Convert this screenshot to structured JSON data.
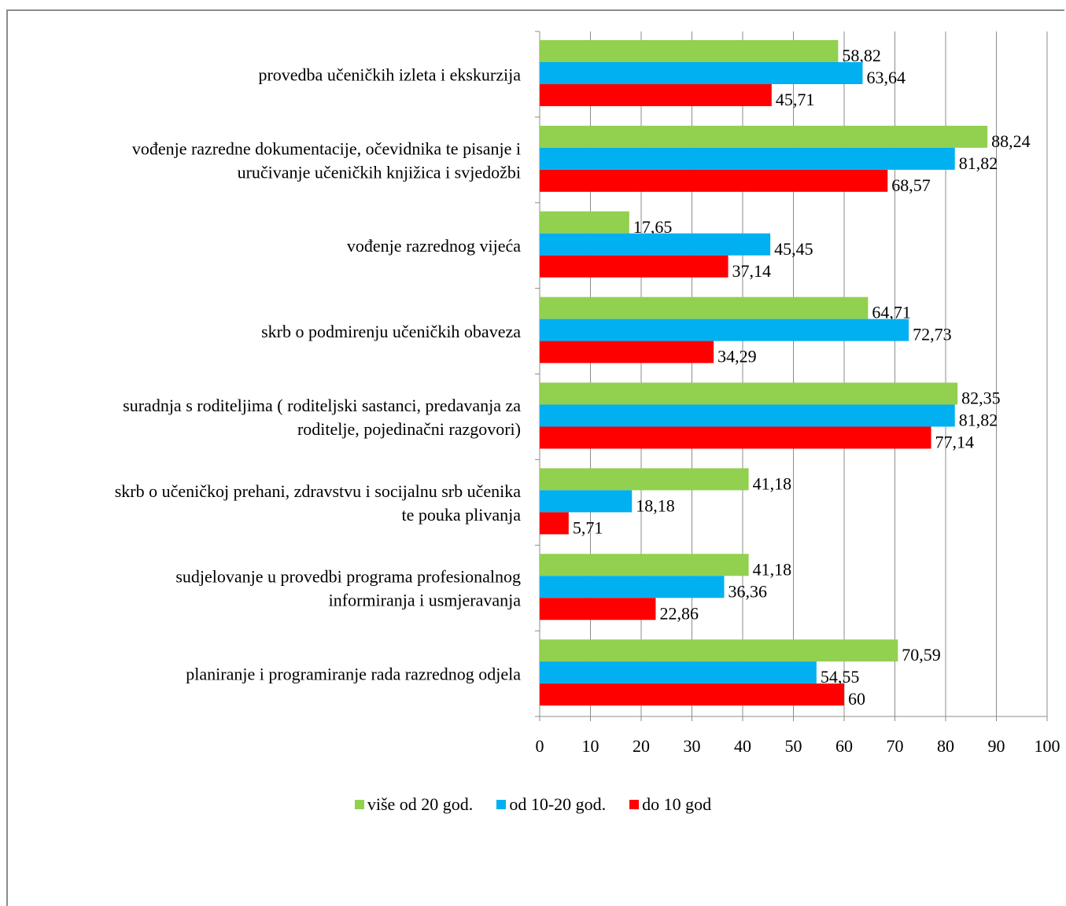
{
  "chart_data": {
    "type": "bar",
    "orientation": "horizontal",
    "categories": [
      [
        "provedba učeničkih izleta i ekskurzija"
      ],
      [
        "vođenje razredne dokumentacije, očevidnika te pisanje i",
        "uručivanje učeničkih knjižica i svjedožbi"
      ],
      [
        "vođenje razrednog vijeća"
      ],
      [
        "skrb o podmirenju učeničkih obaveza"
      ],
      [
        "suradnja s roditeljima ( roditeljski sastanci, predavanja za",
        "roditelje, pojedinačni razgovori)"
      ],
      [
        "skrb o učeničkoj prehani, zdravstvu i socijalnu srb učenika",
        "te pouka plivanja"
      ],
      [
        "sudjelovanje u provedbi programa profesionalnog",
        "informiranja i usmjeravanja"
      ],
      [
        "planiranje i programiranje rada razrednog odjela"
      ]
    ],
    "series": [
      {
        "name": "više od 20 god.",
        "color": "#92d050",
        "values": [
          58.82,
          88.24,
          17.65,
          64.71,
          82.35,
          41.18,
          41.18,
          70.59
        ],
        "labels": [
          "58,82",
          "88,24",
          "17,65",
          "64,71",
          "82,35",
          "41,18",
          "41,18",
          "70,59"
        ]
      },
      {
        "name": "od 10-20 god.",
        "color": "#00b0f0",
        "values": [
          63.64,
          81.82,
          45.45,
          72.73,
          81.82,
          18.18,
          36.36,
          54.55
        ],
        "labels": [
          "63,64",
          "81,82",
          "45,45",
          "72,73",
          "81,82",
          "18,18",
          "36,36",
          "54,55"
        ]
      },
      {
        "name": "do 10 god",
        "color": "#ff0000",
        "values": [
          45.71,
          68.57,
          37.14,
          34.29,
          77.14,
          5.71,
          22.86,
          60
        ],
        "labels": [
          "45,71",
          "68,57",
          "37,14",
          "34,29",
          "77,14",
          "5,71",
          "22,86",
          "60"
        ]
      }
    ],
    "xlim": [
      0,
      100
    ],
    "xticks": [
      0,
      10,
      20,
      30,
      40,
      50,
      60,
      70,
      80,
      90,
      100
    ],
    "grid": true,
    "legend": "bottom"
  }
}
